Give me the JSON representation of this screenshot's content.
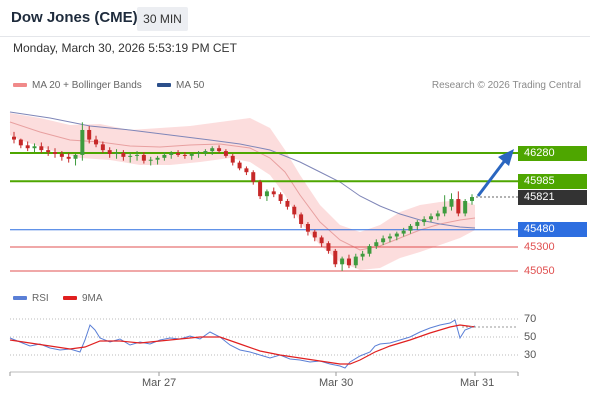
{
  "header": {
    "title": "Dow Jones (CME)",
    "timeframe": "30 MIN",
    "datetime": "Monday, March 30, 2026 5:53:19 PM CET"
  },
  "legend": {
    "bollinger_label": "MA 20 + Bollinger Bands",
    "ma50_label": "MA 50",
    "rsi_label": "RSI",
    "ma9_label": "9MA",
    "copyright": "Research © 2026 Trading Central"
  },
  "colors": {
    "resistance": "#4ea600",
    "support": "#2d6ee0",
    "target": "#e05050",
    "current": "#333333",
    "up_candle": "#3e9b3e",
    "down_candle": "#c62828",
    "bollinger": "#f9c3c3",
    "ma50": "#7f86b8",
    "rsi": "#5a7fd6",
    "rsi_ma": "#e02020",
    "arrow": "#2a66c0"
  },
  "price_levels": [
    {
      "label": "46280",
      "value": 46280,
      "kind": "resistance"
    },
    {
      "label": "45985",
      "value": 45985,
      "kind": "resistance"
    },
    {
      "label": "45821",
      "value": 45821,
      "kind": "current"
    },
    {
      "label": "45480",
      "value": 45480,
      "kind": "support"
    },
    {
      "label": "45300",
      "value": 45300,
      "kind": "target"
    },
    {
      "label": "45050",
      "value": 45050,
      "kind": "target"
    }
  ],
  "rsi_axis": {
    "ticks": [
      "70",
      "50",
      "30"
    ]
  },
  "x_axis": {
    "labels": [
      "Mar 27",
      "Mar 30",
      "Mar 31"
    ]
  },
  "chart_data": {
    "type": "candlestick",
    "x_labels": [
      "Mar 27",
      "Mar 30",
      "Mar 31"
    ],
    "price_levels": [
      46280,
      45985,
      45821,
      45480,
      45300,
      45050
    ],
    "last_price": 45821,
    "candles": [
      [
        46450,
        46500,
        46380,
        46420
      ],
      [
        46420,
        46430,
        46330,
        46360
      ],
      [
        46360,
        46400,
        46300,
        46330
      ],
      [
        46330,
        46380,
        46290,
        46350
      ],
      [
        46350,
        46390,
        46280,
        46310
      ],
      [
        46310,
        46350,
        46250,
        46290
      ],
      [
        46290,
        46330,
        46230,
        46270
      ],
      [
        46270,
        46300,
        46200,
        46240
      ],
      [
        46240,
        46280,
        46180,
        46220
      ],
      [
        46220,
        46270,
        46150,
        46260
      ],
      [
        46260,
        46600,
        46200,
        46520
      ],
      [
        46520,
        46560,
        46380,
        46420
      ],
      [
        46420,
        46460,
        46340,
        46370
      ],
      [
        46370,
        46400,
        46280,
        46310
      ],
      [
        46310,
        46340,
        46230,
        46270
      ],
      [
        46270,
        46320,
        46220,
        46280
      ],
      [
        46280,
        46310,
        46200,
        46240
      ],
      [
        46240,
        46280,
        46180,
        46250
      ],
      [
        46250,
        46300,
        46200,
        46260
      ],
      [
        46260,
        46290,
        46170,
        46200
      ],
      [
        46200,
        46240,
        46150,
        46210
      ],
      [
        46210,
        46250,
        46160,
        46230
      ],
      [
        46230,
        46290,
        46200,
        46260
      ],
      [
        46260,
        46300,
        46220,
        46280
      ],
      [
        46280,
        46310,
        46240,
        46260
      ],
      [
        46260,
        46290,
        46220,
        46250
      ],
      [
        46250,
        46280,
        46210,
        46270
      ],
      [
        46270,
        46300,
        46230,
        46280
      ],
      [
        46280,
        46320,
        46250,
        46300
      ],
      [
        46300,
        46350,
        46260,
        46330
      ],
      [
        46330,
        46360,
        46280,
        46300
      ],
      [
        46300,
        46320,
        46230,
        46250
      ],
      [
        46250,
        46270,
        46150,
        46180
      ],
      [
        46180,
        46200,
        46100,
        46120
      ],
      [
        46120,
        46140,
        46050,
        46080
      ],
      [
        46080,
        46100,
        45950,
        45980
      ],
      [
        45980,
        46000,
        45800,
        45830
      ],
      [
        45830,
        45900,
        45780,
        45880
      ],
      [
        45880,
        45920,
        45820,
        45850
      ],
      [
        45850,
        45870,
        45750,
        45780
      ],
      [
        45780,
        45800,
        45690,
        45720
      ],
      [
        45720,
        45740,
        45600,
        45640
      ],
      [
        45640,
        45660,
        45500,
        45540
      ],
      [
        45540,
        45560,
        45420,
        45460
      ],
      [
        45460,
        45480,
        45360,
        45400
      ],
      [
        45400,
        45420,
        45300,
        45340
      ],
      [
        45340,
        45360,
        45230,
        45260
      ],
      [
        45260,
        45280,
        45090,
        45120
      ],
      [
        45120,
        45200,
        45050,
        45180
      ],
      [
        45180,
        45220,
        45080,
        45110
      ],
      [
        45110,
        45230,
        45080,
        45200
      ],
      [
        45200,
        45260,
        45160,
        45230
      ],
      [
        45230,
        45330,
        45200,
        45310
      ],
      [
        45310,
        45380,
        45280,
        45350
      ],
      [
        45350,
        45420,
        45320,
        45390
      ],
      [
        45390,
        45440,
        45350,
        45410
      ],
      [
        45410,
        45460,
        45370,
        45440
      ],
      [
        45440,
        45500,
        45410,
        45470
      ],
      [
        45470,
        45540,
        45440,
        45520
      ],
      [
        45520,
        45580,
        45480,
        45560
      ],
      [
        45560,
        45620,
        45520,
        45590
      ],
      [
        45590,
        45650,
        45560,
        45620
      ],
      [
        45620,
        45680,
        45580,
        45650
      ],
      [
        45650,
        45840,
        45620,
        45720
      ],
      [
        45720,
        45860,
        45680,
        45800
      ],
      [
        45800,
        45880,
        45620,
        45650
      ],
      [
        45650,
        45800,
        45620,
        45780
      ],
      [
        45780,
        45850,
        45740,
        45821
      ]
    ]
  }
}
